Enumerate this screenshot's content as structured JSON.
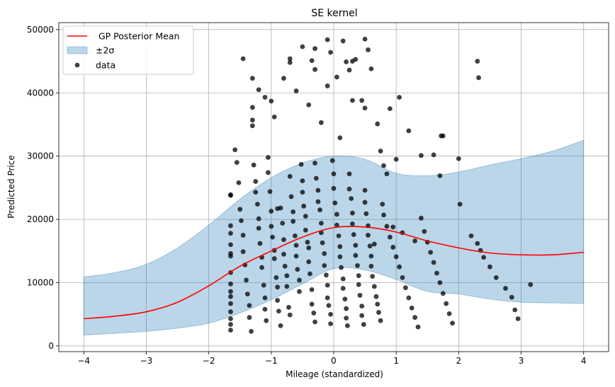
{
  "chart_data": {
    "type": "scatter",
    "title": "SE kernel",
    "xlabel": "Mileage (standardized)",
    "ylabel": "Predicted Price",
    "xlim": [
      -4.4,
      4.4
    ],
    "ylim": [
      -900,
      51100
    ],
    "xticks": [
      -4,
      -3,
      -2,
      -1,
      0,
      1,
      2,
      3,
      4
    ],
    "xtick_labels": [
      "−4",
      "−3",
      "−2",
      "−1",
      "0",
      "1",
      "2",
      "3",
      "4"
    ],
    "yticks": [
      0,
      10000,
      20000,
      30000,
      40000,
      50000
    ],
    "ytick_labels": [
      "0",
      "10000",
      "20000",
      "30000",
      "40000",
      "50000"
    ],
    "grid": true,
    "legend_position": "top-left",
    "colors": {
      "mean": "#ff0000",
      "band_fill": "#1f77b4",
      "band_edge": "#1f77b4",
      "points": "#000000",
      "grid": "#b0b0b0"
    },
    "legend": [
      {
        "label": " GP Posterior Mean",
        "kind": "line"
      },
      {
        "label": "±2σ",
        "kind": "band"
      },
      {
        "label": "data",
        "kind": "point"
      }
    ],
    "series": [
      {
        "name": " GP Posterior Mean",
        "kind": "line",
        "x": [
          -4.0,
          -3.5,
          -3.0,
          -2.5,
          -2.0,
          -1.5,
          -1.0,
          -0.5,
          0.0,
          0.5,
          1.0,
          1.5,
          2.0,
          2.5,
          3.0,
          3.5,
          4.0
        ],
        "y": [
          4300,
          4700,
          5400,
          6900,
          9500,
          12600,
          15000,
          17200,
          18700,
          18800,
          18000,
          16600,
          15500,
          14700,
          14400,
          14400,
          14800
        ]
      },
      {
        "name": "±2σ",
        "kind": "band",
        "x": [
          -4.0,
          -3.5,
          -3.0,
          -2.5,
          -2.0,
          -1.5,
          -1.0,
          -0.5,
          0.0,
          0.5,
          1.0,
          1.5,
          2.0,
          2.5,
          3.0,
          3.5,
          4.0
        ],
        "lower": [
          1700,
          2000,
          2300,
          2800,
          3600,
          5200,
          7300,
          9800,
          12200,
          12000,
          10500,
          8600,
          8200,
          7400,
          6900,
          6800,
          6700
        ],
        "upper": [
          10900,
          11600,
          12900,
          15500,
          19100,
          23200,
          26600,
          28900,
          30000,
          29500,
          27300,
          26900,
          27500,
          28600,
          29600,
          30800,
          32500
        ]
      },
      {
        "name": "data",
        "kind": "scatter",
        "x": [
          -1.65,
          -1.65,
          -1.65,
          -1.65,
          -1.65,
          -1.65,
          -1.65,
          -1.65,
          -1.65,
          -1.65,
          -1.65,
          -1.65,
          -1.65,
          -1.65,
          -1.65,
          -1.65,
          -1.58,
          -1.55,
          -1.52,
          -1.5,
          -1.48,
          -1.45,
          -1.45,
          -1.42,
          -1.4,
          -1.38,
          -1.35,
          -1.35,
          -1.32,
          -1.3,
          -1.3,
          -1.28,
          -1.25,
          -1.25,
          -1.22,
          -1.2,
          -1.2,
          -1.18,
          -1.15,
          -1.15,
          -1.12,
          -1.1,
          -1.1,
          -1.08,
          -1.05,
          -1.05,
          -1.02,
          -1.0,
          -1.0,
          -0.98,
          -0.95,
          -0.95,
          -0.92,
          -0.9,
          -0.9,
          -0.88,
          -0.85,
          -0.85,
          -0.82,
          -0.8,
          -0.8,
          -0.78,
          -0.75,
          -0.75,
          -0.72,
          -0.7,
          -0.7,
          -0.68,
          -0.65,
          -0.65,
          -0.62,
          -0.6,
          -0.6,
          -0.58,
          -0.55,
          -0.55,
          -0.52,
          -0.5,
          -0.5,
          -0.48,
          -0.45,
          -0.45,
          -0.42,
          -0.4,
          -0.4,
          -0.38,
          -0.35,
          -0.35,
          -0.32,
          -0.3,
          -0.3,
          -0.28,
          -0.25,
          -0.25,
          -0.22,
          -0.2,
          -0.2,
          -0.18,
          -0.15,
          -0.15,
          -0.12,
          -0.1,
          -0.1,
          -0.08,
          -0.05,
          -0.05,
          -0.02,
          0.0,
          0.0,
          0.02,
          0.05,
          0.05,
          0.08,
          0.1,
          0.1,
          0.12,
          0.15,
          0.15,
          0.18,
          0.2,
          0.2,
          0.22,
          0.25,
          0.25,
          0.28,
          0.3,
          0.3,
          0.32,
          0.35,
          0.35,
          0.38,
          0.4,
          0.4,
          0.42,
          0.45,
          0.45,
          0.48,
          0.5,
          0.5,
          0.52,
          0.55,
          0.55,
          0.58,
          0.6,
          0.6,
          0.62,
          0.65,
          0.68,
          0.7,
          0.72,
          0.75,
          0.78,
          0.8,
          0.85,
          0.9,
          0.95,
          1.0,
          1.05,
          1.1,
          1.15,
          1.2,
          1.25,
          1.3,
          1.35,
          1.4,
          1.45,
          1.5,
          1.55,
          1.6,
          1.65,
          1.7,
          1.75,
          1.8,
          1.85,
          1.9,
          2.0,
          2.2,
          2.3,
          2.35,
          2.4,
          2.5,
          2.6,
          2.75,
          2.85,
          2.9,
          2.95,
          3.15,
          -0.9,
          -0.8,
          -0.7,
          -0.3,
          -0.1,
          0.05,
          0.2,
          0.3,
          0.5,
          0.6,
          0.9,
          1.0,
          1.05,
          1.2,
          1.4,
          1.7,
          1.72,
          1.75,
          2.02,
          2.3,
          2.32,
          -1.3,
          -1.2,
          -1.1,
          -1.0,
          -0.95,
          -0.6,
          -0.4,
          -0.2,
          0.1,
          0.3,
          0.5,
          0.7,
          0.8,
          0.85,
          0.95,
          1.1,
          1.3,
          1.6,
          -0.5,
          -0.3,
          -0.1,
          0.15,
          0.35,
          0.55,
          0.75,
          -1.45,
          -1.3,
          -0.7,
          -0.35,
          -0.05,
          0.25,
          0.45,
          0.65
        ],
        "y": [
          23800,
          17800,
          16000,
          14200,
          11600,
          9800,
          8600,
          7800,
          6700,
          5400,
          4300,
          3400,
          2500,
          23900,
          19000,
          14600,
          31000,
          29000,
          25800,
          21600,
          19800,
          17500,
          14900,
          12800,
          10400,
          8200,
          6400,
          4500,
          2300,
          37700,
          34800,
          28600,
          26000,
          24300,
          22400,
          20100,
          18600,
          16200,
          14000,
          12400,
          9600,
          7600,
          5800,
          4000,
          29800,
          27400,
          24400,
          21300,
          18900,
          17200,
          15100,
          13800,
          10800,
          9300,
          7200,
          5500,
          3200,
          21800,
          19400,
          16800,
          14500,
          12600,
          11100,
          9400,
          6100,
          4900,
          26800,
          23600,
          21200,
          19700,
          17400,
          15900,
          14200,
          12100,
          10400,
          8600,
          28700,
          26100,
          24300,
          22100,
          20500,
          18300,
          16400,
          15500,
          13300,
          11400,
          8900,
          6600,
          5200,
          3800,
          28900,
          26500,
          24600,
          22800,
          21500,
          19400,
          17900,
          16300,
          14600,
          12700,
          11200,
          9600,
          7600,
          6400,
          5000,
          3500,
          29300,
          27200,
          24900,
          22600,
          20800,
          19100,
          17400,
          15700,
          14100,
          12400,
          10600,
          9100,
          7400,
          5900,
          4400,
          3200,
          27200,
          24800,
          23300,
          21000,
          19300,
          17600,
          15900,
          14300,
          12700,
          11100,
          9700,
          8000,
          6300,
          4800,
          3400,
          24600,
          22700,
          20900,
          19000,
          17500,
          15800,
          14200,
          12600,
          11000,
          9400,
          7800,
          6600,
          5300,
          4000,
          22400,
          20700,
          18900,
          17200,
          15600,
          14100,
          12500,
          10800,
          9200,
          7600,
          6000,
          4500,
          3000,
          20200,
          18100,
          16400,
          14800,
          13200,
          11500,
          10000,
          8300,
          6700,
          5100,
          3600,
          29600,
          17400,
          16200,
          15100,
          14000,
          12500,
          10800,
          9100,
          7700,
          5700,
          4300,
          9700,
          21700,
          42300,
          45400,
          43700,
          41100,
          42500,
          44900,
          45000,
          48500,
          43800,
          37500,
          29500,
          39300,
          34000,
          30100,
          26900,
          33200,
          33200,
          22400,
          45000,
          42400,
          35700,
          40500,
          39300,
          38700,
          36200,
          40300,
          38100,
          35300,
          32900,
          38800,
          37600,
          35100,
          28500,
          27200,
          18800,
          17900,
          16600,
          30200,
          47300,
          47000,
          48400,
          48200,
          45300,
          46800,
          30800,
          45400,
          42300,
          44800,
          45100,
          46400,
          43600,
          38800,
          16100
        ]
      }
    ]
  }
}
